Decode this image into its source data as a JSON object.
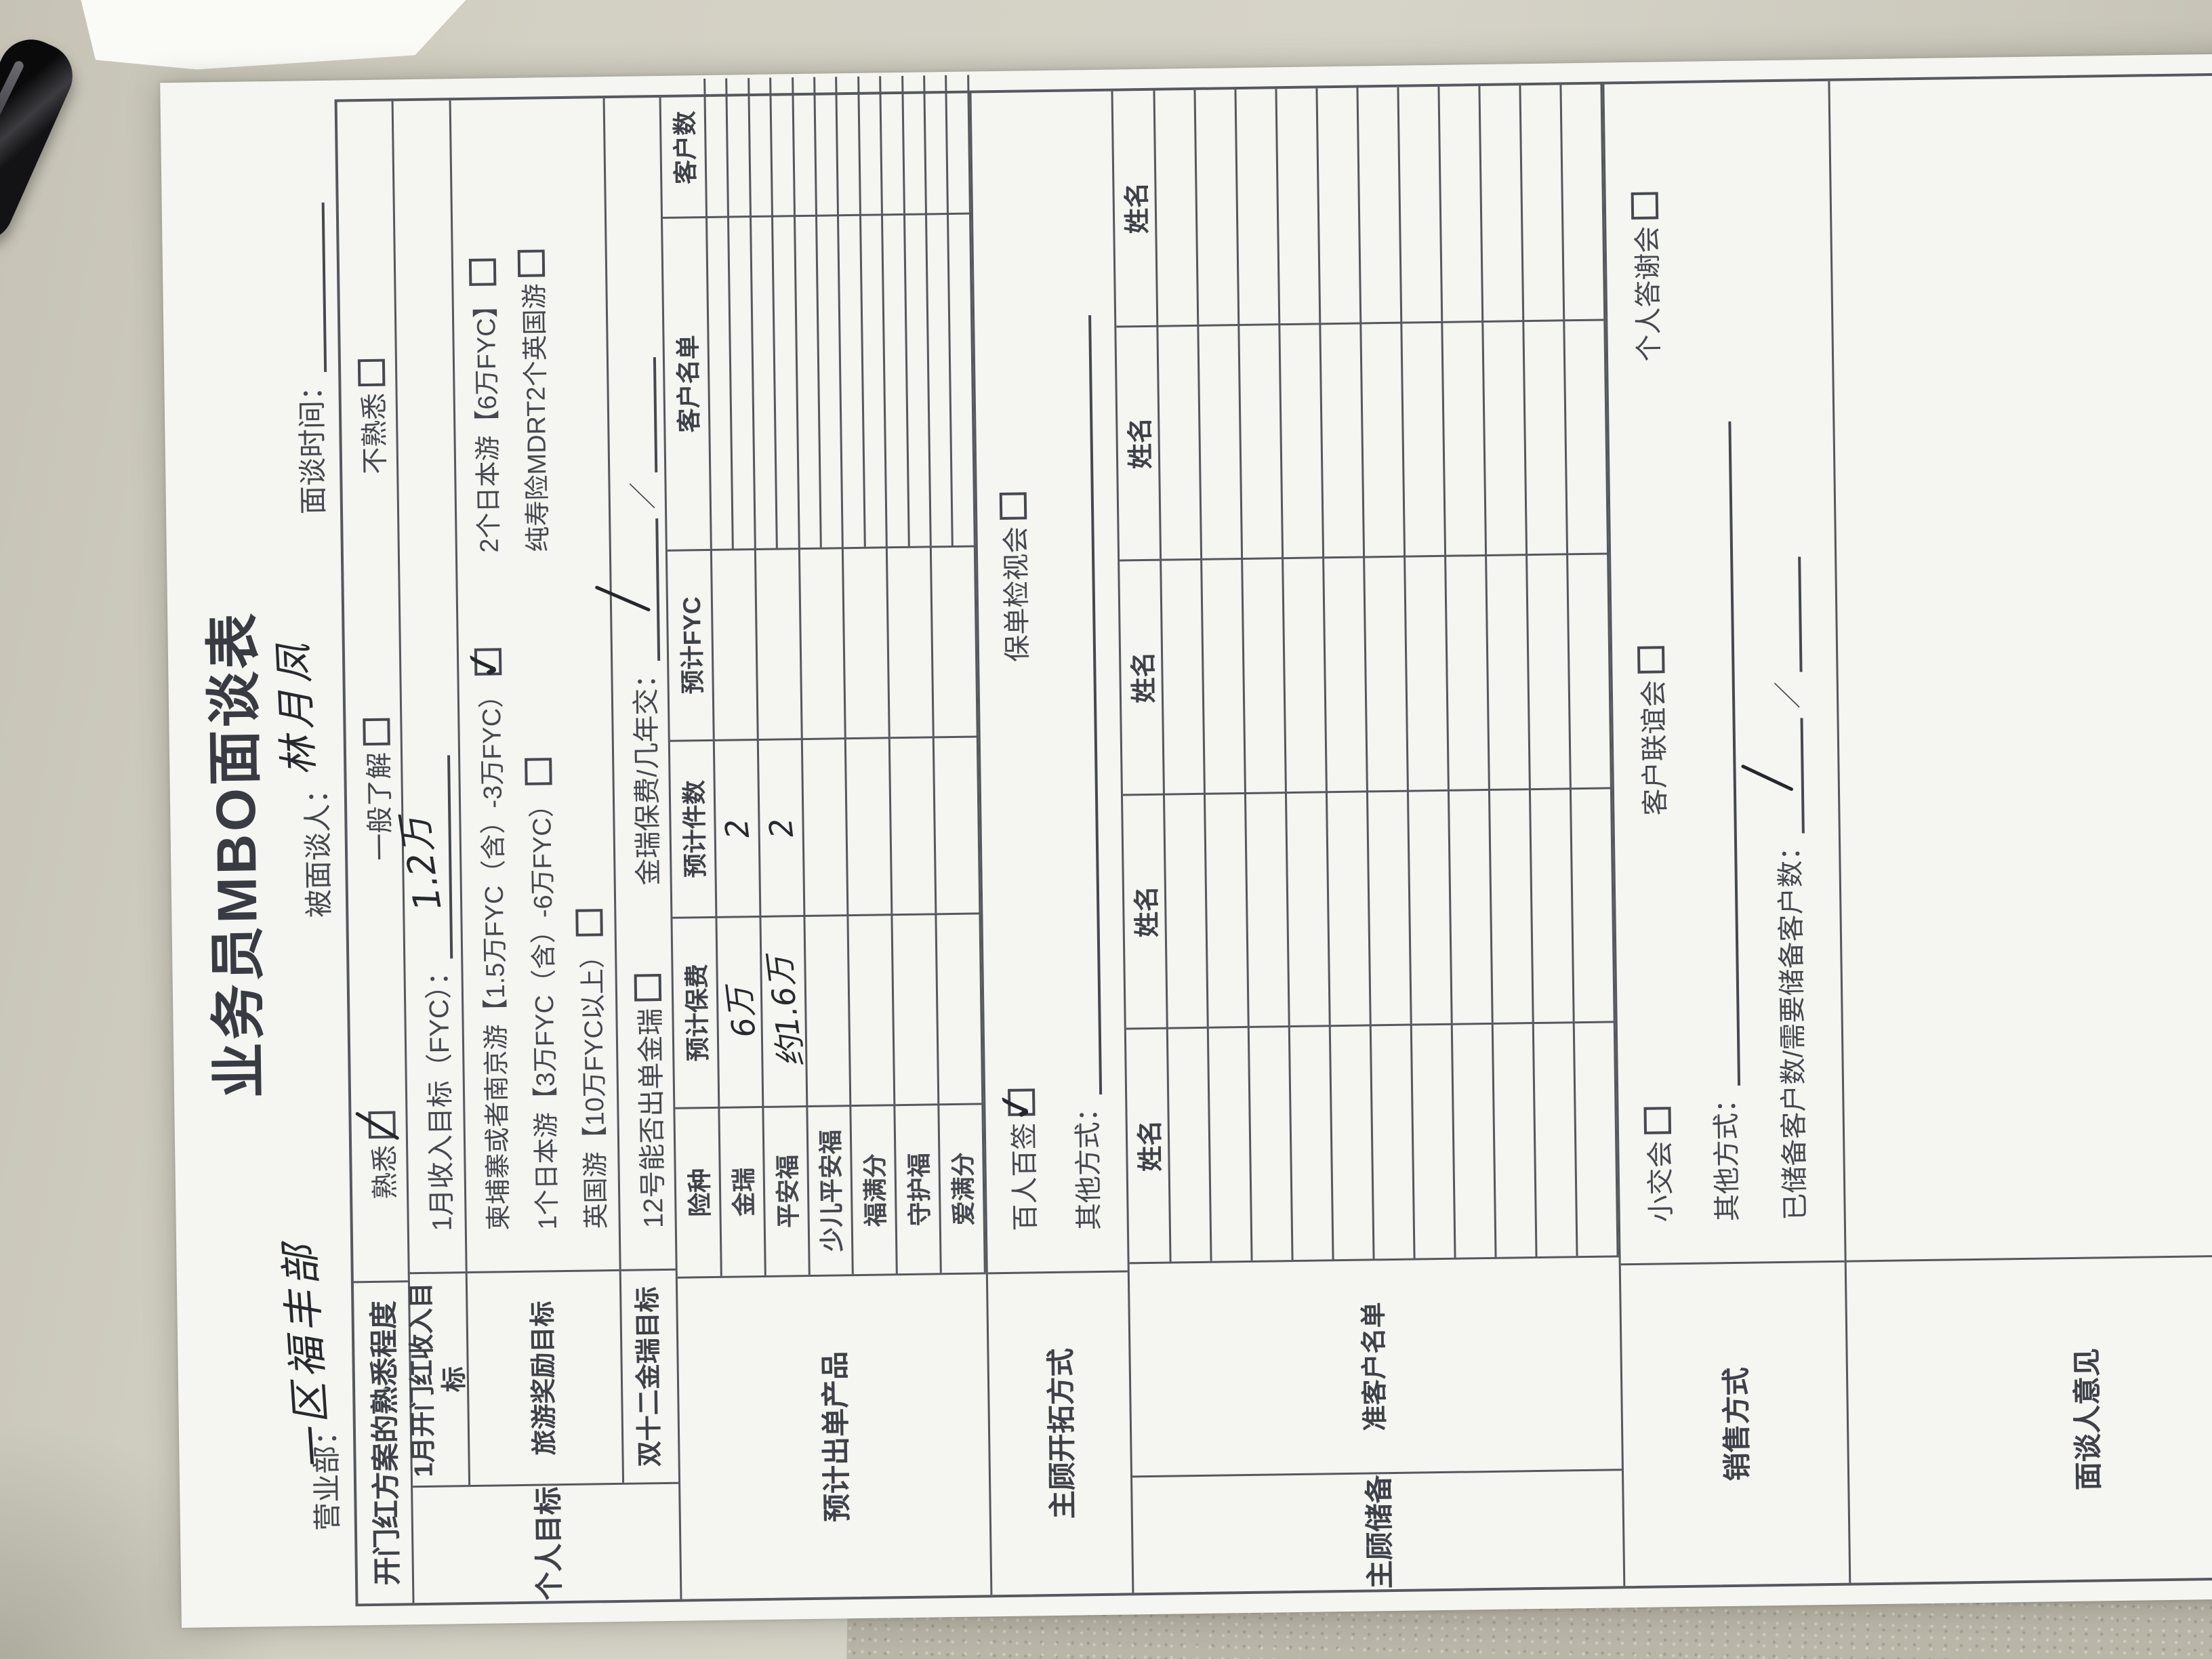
{
  "photo": {
    "desk_color": "#d3d0c4",
    "paper_color": "#f5f5f1",
    "print_ink_color": "#45484f",
    "handwriting_color": "#26292d"
  },
  "form": {
    "title": "业务员MBO面谈表",
    "header": {
      "dept_label": "营业部：",
      "dept_value": "一区福丰部",
      "interviewee_label": "被面谈人：",
      "interviewee_value": "林月凤",
      "time_label": "面谈时间："
    },
    "familiarity": {
      "label": "开门红方案的熟悉程度",
      "opt1": "熟悉",
      "opt2": "一般了解",
      "opt3": "不熟悉",
      "checked": "熟悉"
    },
    "personal_goal_label": "个人目标",
    "income": {
      "label": "1月开门红收入目标",
      "text": "1月收入目标（FYC）：",
      "value": "1.2万"
    },
    "travel": {
      "label": "旅游奖励目标",
      "opt_l1": "柬埔寨或者南京游【1.5万FYC（含）-3万FYC）",
      "opt_l2": "1个日本游【3万FYC（含）-6万FYC）",
      "opt_l3": "英国游【10万FYC以上）",
      "opt_r1": "2个日本游【6万FYC】",
      "opt_r2": "纯寿险MDRT2个英国游",
      "checked": "柬埔寨或者南京游"
    },
    "double12": {
      "label": "双十二金瑞目标",
      "checkbox_text": "12号能否出单金瑞",
      "premium_text": "金瑞保费/几年交：",
      "sep": "／",
      "hand_mark": "／"
    },
    "products": {
      "label": "预计出单产品",
      "h1": "险种",
      "h2": "预计保费",
      "h3": "预计件数",
      "h4": "预计FYC",
      "h5": "客户名单",
      "h6": "客户数",
      "rows": [
        {
          "name": "金瑞",
          "premium": "6万",
          "count": "2",
          "fyc": ""
        },
        {
          "name": "平安福",
          "premium": "约1.6万",
          "count": "2",
          "fyc": ""
        },
        {
          "name": "少儿平安福",
          "premium": "",
          "count": "",
          "fyc": ""
        },
        {
          "name": "福满分",
          "premium": "",
          "count": "",
          "fyc": ""
        },
        {
          "name": "守护福",
          "premium": "",
          "count": "",
          "fyc": ""
        },
        {
          "name": "爱满分",
          "premium": "",
          "count": "",
          "fyc": ""
        }
      ],
      "client_sub_rows": 12
    },
    "prospecting": {
      "label": "主顾开拓方式",
      "opt1": "百人百签",
      "opt2": "保单检视会",
      "other_text": "其他方式：",
      "checked": "百人百签"
    },
    "reserve": {
      "label": "主顾储备",
      "sublabel": "准客户名单",
      "name_header": "姓名",
      "columns": 5,
      "rows": 11
    },
    "sales": {
      "label": "销售方式",
      "opt1": "小交会",
      "opt2": "客户联谊会",
      "opt3": "个人答谢会",
      "other_text": "其他方式：",
      "reserve_text": "已储备客户数/需要储备客户数：",
      "sep": "／",
      "hand_mark": "／"
    },
    "opinion_label": "面谈人意见"
  }
}
